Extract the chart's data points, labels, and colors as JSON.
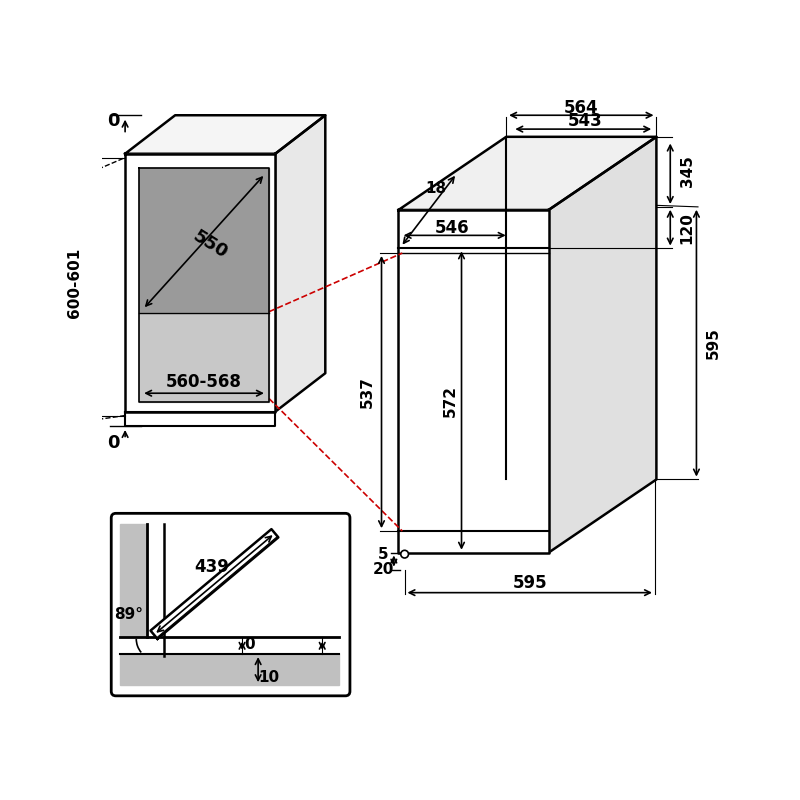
{
  "bg_color": "#ffffff",
  "lc": "#000000",
  "rc": "#cc0000",
  "gf_dark": "#b0b0b0",
  "gf_light": "#d0d0d0",
  "fs": 11,
  "dims": {
    "d564": "564",
    "d543": "543",
    "d546": "546",
    "d345": "345",
    "d120": "120",
    "d595r": "595",
    "d537": "537",
    "d572": "572",
    "d18": "18",
    "d595b": "595",
    "d5": "5",
    "d20": "20",
    "d550": "550",
    "d560": "560-568",
    "d600": "600-601",
    "d439": "439",
    "d89": "89°",
    "d0": "0",
    "d10": "10"
  }
}
